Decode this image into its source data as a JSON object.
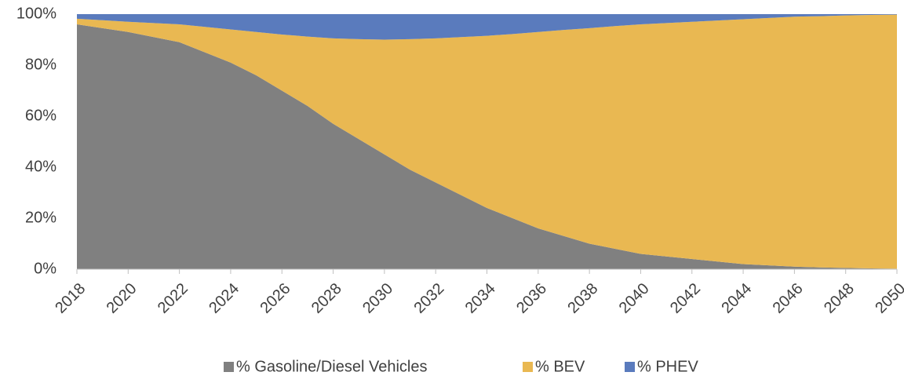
{
  "chart_data": {
    "type": "area",
    "stacked": true,
    "x": [
      2018,
      2019,
      2020,
      2021,
      2022,
      2023,
      2024,
      2025,
      2026,
      2027,
      2028,
      2029,
      2030,
      2031,
      2032,
      2033,
      2034,
      2035,
      2036,
      2037,
      2038,
      2039,
      2040,
      2041,
      2042,
      2043,
      2044,
      2045,
      2046,
      2047,
      2048,
      2049,
      2050
    ],
    "series": [
      {
        "name": "% Gasoline/Diesel Vehicles",
        "color": "#808080",
        "values": [
          96,
          94.5,
          93,
          91,
          89,
          85,
          81,
          76,
          70,
          64,
          57,
          51,
          45,
          39,
          34,
          29,
          24,
          20,
          16,
          13,
          10,
          8,
          6,
          5,
          4,
          3,
          2,
          1.5,
          1,
          0.7,
          0.5,
          0.3,
          0.2
        ]
      },
      {
        "name": "% BEV",
        "color": "#e9b852",
        "values": [
          2.2,
          3.1,
          4,
          5.5,
          7,
          10,
          13,
          17,
          22,
          27.2,
          33.5,
          39.2,
          45,
          51.2,
          56.5,
          62,
          67.5,
          72.2,
          77,
          80.8,
          84.5,
          87.3,
          90,
          91.5,
          93,
          94.5,
          96,
          97,
          98,
          98.5,
          99,
          99.4,
          99.6
        ]
      },
      {
        "name": "% PHEV",
        "color": "#5a7bbd",
        "values": [
          1.8,
          2.4,
          3,
          3.5,
          4,
          5,
          6,
          7,
          8,
          8.8,
          9.5,
          9.8,
          10,
          9.8,
          9.5,
          9,
          8.5,
          7.8,
          7,
          6.2,
          5.5,
          4.7,
          4,
          3.5,
          3,
          2.5,
          2,
          1.5,
          1,
          0.8,
          0.5,
          0.3,
          0.2
        ]
      }
    ],
    "xlim": [
      2018,
      2050
    ],
    "xticks": [
      2018,
      2020,
      2022,
      2024,
      2026,
      2028,
      2030,
      2032,
      2034,
      2036,
      2038,
      2040,
      2042,
      2044,
      2046,
      2048,
      2050
    ],
    "ylim": [
      0,
      100
    ],
    "yticks": [
      {
        "value": 0,
        "label": "0%"
      },
      {
        "value": 20,
        "label": "20%"
      },
      {
        "value": 40,
        "label": "40%"
      },
      {
        "value": 60,
        "label": "60%"
      },
      {
        "value": 80,
        "label": "80%"
      },
      {
        "value": 100,
        "label": "100%"
      }
    ],
    "legend": "bottom"
  }
}
